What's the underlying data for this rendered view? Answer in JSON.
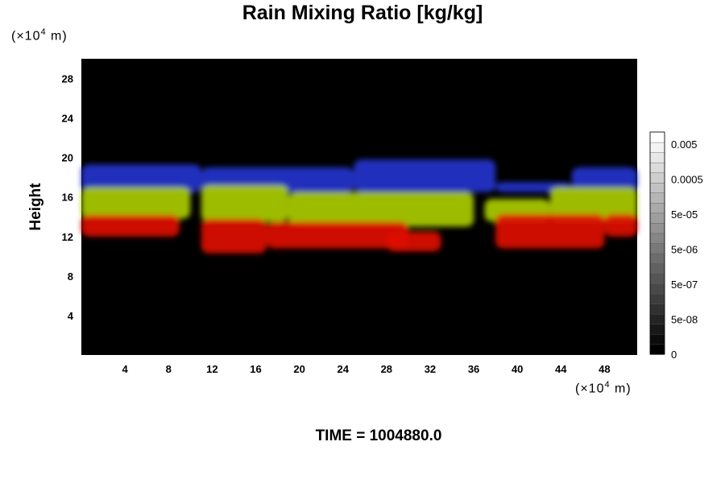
{
  "chart_data": {
    "type": "heatmap",
    "title": "Rain Mixing Ratio [kg/kg]",
    "ylabel": "Height",
    "xlabel": "",
    "x_unit": "(×10⁴ m)",
    "y_unit": "(×10⁴ m)",
    "time_label": "TIME = 1004880.0",
    "xlim": [
      0,
      51
    ],
    "ylim": [
      0,
      30
    ],
    "xticks": [
      4,
      8,
      12,
      16,
      20,
      24,
      28,
      32,
      36,
      40,
      44,
      48
    ],
    "yticks": [
      4,
      8,
      12,
      16,
      20,
      24,
      28
    ],
    "background_color": "#000000",
    "colorbar": {
      "labels": [
        "0.005",
        "0.0005",
        "5e-05",
        "5e-06",
        "5e-07",
        "5e-08",
        "0"
      ],
      "colors": [
        "#000000",
        "#ffffff"
      ]
    },
    "layers": [
      {
        "color": "#2233cc",
        "segments": [
          {
            "x0": 0,
            "x1": 11,
            "y0": 16.5,
            "y1": 19.3
          },
          {
            "x0": 11,
            "x1": 25,
            "y0": 16.5,
            "y1": 19.0
          },
          {
            "x0": 25,
            "x1": 38,
            "y0": 16.5,
            "y1": 19.8
          },
          {
            "x0": 38,
            "x1": 45,
            "y0": 16.5,
            "y1": 17.5
          },
          {
            "x0": 45,
            "x1": 51,
            "y0": 16.5,
            "y1": 19.0
          }
        ]
      },
      {
        "color": "#aacc00",
        "segments": [
          {
            "x0": 0,
            "x1": 10,
            "y0": 13.8,
            "y1": 17.0
          },
          {
            "x0": 11,
            "x1": 19,
            "y0": 13.5,
            "y1": 17.2
          },
          {
            "x0": 19,
            "x1": 36,
            "y0": 13.0,
            "y1": 16.5
          },
          {
            "x0": 37,
            "x1": 43,
            "y0": 13.5,
            "y1": 15.8
          },
          {
            "x0": 43,
            "x1": 51,
            "y0": 13.5,
            "y1": 17.0
          }
        ]
      },
      {
        "color": "#dd1100",
        "segments": [
          {
            "x0": 0,
            "x1": 9,
            "y0": 12.0,
            "y1": 14.2
          },
          {
            "x0": 11,
            "x1": 17,
            "y0": 10.3,
            "y1": 13.8
          },
          {
            "x0": 17,
            "x1": 30,
            "y0": 10.8,
            "y1": 13.5
          },
          {
            "x0": 28,
            "x1": 33,
            "y0": 10.5,
            "y1": 12.5
          },
          {
            "x0": 38,
            "x1": 48,
            "y0": 10.8,
            "y1": 14.3
          },
          {
            "x0": 48,
            "x1": 51,
            "y0": 12.0,
            "y1": 14.3
          }
        ]
      }
    ]
  }
}
